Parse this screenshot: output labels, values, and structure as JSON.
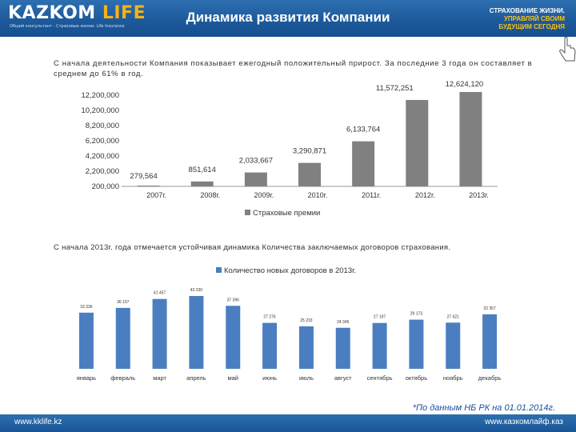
{
  "header": {
    "logo_main": "KAZKOM",
    "logo_life": " LIFE",
    "logo_tagline": "Общий консультант - Страховые жизни. Life Insurance",
    "title": "Динамика развития Компании",
    "slogan_lines": [
      "СТРАХОВАНИЕ ЖИЗНИ.",
      "УПРАВЛЯЙ СВОИМ",
      "БУДУЩИМ СЕГОДНЯ"
    ]
  },
  "intro_text": "С начала деятельности Компания показывает ежегодный положительный прирост. За последние 3 года он составляет в среднем до 61% в год.",
  "note_2013": "С начала 2013г. года отмечается устойчивая динамика Количества заключаемых договоров страхования.",
  "footnote": "*По данным НБ РК на 01.01.2014г.",
  "footer": {
    "left": "www.kklife.kz",
    "right": "www.казкомлайф.каз"
  },
  "colors": {
    "header_blue": "#1d5a9c",
    "bar_gray": "#808080",
    "bar_blue": "#4a7ec1",
    "accent_gold": "#f6b21a"
  },
  "chart_data": [
    {
      "type": "bar",
      "categories": [
        "2007г.",
        "2008г.",
        "2009г.",
        "2010г.",
        "2011г.",
        "2012г.",
        "2013г."
      ],
      "values": [
        279564,
        851614,
        2033667,
        3290871,
        6133764,
        11572251,
        12624120
      ],
      "value_labels": [
        "279,564",
        "851,614",
        "2,033,667",
        "3,290,871",
        "6,133,764",
        "11,572,251",
        "12,624,120"
      ],
      "y_ticks": [
        200000,
        2200000,
        4200000,
        6200000,
        8200000,
        10200000,
        12200000
      ],
      "y_tick_labels": [
        "200,000",
        "2,200,000",
        "4,200,000",
        "6,200,000",
        "8,200,000",
        "10,200,000",
        "12,200,000"
      ],
      "ylim": [
        200000,
        12200000
      ],
      "legend": "Страховые премии",
      "legend_position": "bottom",
      "color": "#808080"
    },
    {
      "type": "bar",
      "title": "Количество новых договоров в 2013г.",
      "categories": [
        "январь",
        "февраль",
        "март",
        "апрель",
        "май",
        "июнь",
        "июль",
        "август",
        "сентябрь",
        "октябрь",
        "ноябрь",
        "декабрь"
      ],
      "values": [
        33336,
        36157,
        41457,
        43230,
        37396,
        27276,
        25233,
        24345,
        27197,
        29173,
        27421,
        32357
      ],
      "value_labels": [
        "33 336",
        "36 157",
        "41 457",
        "43 230",
        "37 396",
        "27 276",
        "25 233",
        "24 345",
        "27 197",
        "29 173",
        "27 421",
        "32 357"
      ],
      "legend_position": "top",
      "color": "#4a7ec1"
    }
  ]
}
